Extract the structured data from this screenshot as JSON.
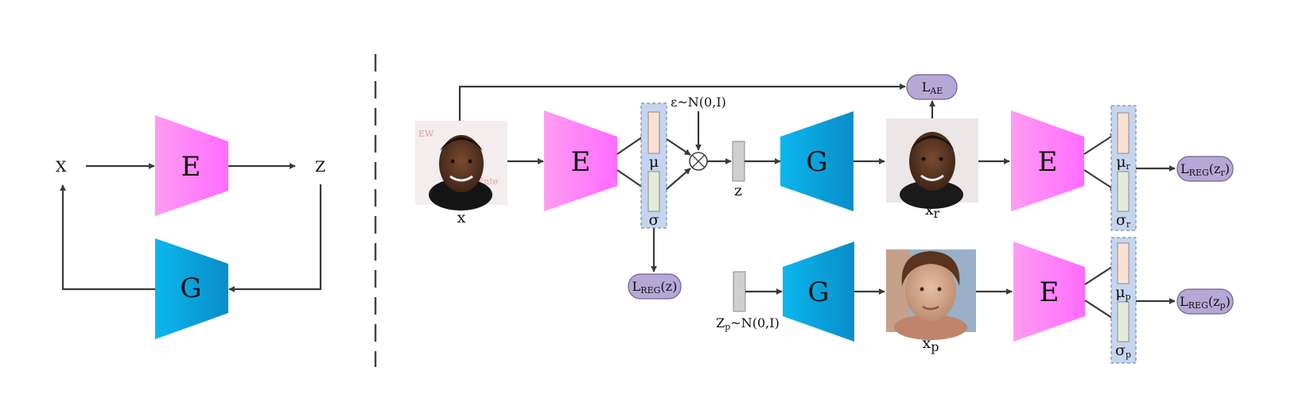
{
  "colors": {
    "encoder": "#ff80ff",
    "generator": "#0aa3dd",
    "loss_pill": "#b6a8d6",
    "mu_bar": "#fbe1d2",
    "sigma_bar": "#e4ecd9",
    "latent_group": "#c6d5ee"
  },
  "left": {
    "x_label": "X",
    "z_label": "Z",
    "encoder_label": "E",
    "generator_label": "G"
  },
  "right": {
    "input_label": "x",
    "encoder_label": "E",
    "mu_label": "μ",
    "sigma_label": "σ",
    "noise_label": "ε~N(0,I)",
    "z_label": "z",
    "generator_label": "G",
    "recon_label": "x",
    "recon_sub": "r",
    "loss_ae": {
      "main": "L",
      "sub": "AE",
      "tail": ""
    },
    "loss_reg_z": {
      "main": "L",
      "sub": "REG",
      "tail": "(z)"
    },
    "encoder2_label": "E",
    "mu_r": {
      "main": "μ",
      "sub": "r"
    },
    "sigma_r": {
      "main": "σ",
      "sub": "r"
    },
    "loss_reg_zr": {
      "main": "L",
      "sub": "REG",
      "tail1": "(z",
      "tail_sub": "r",
      "tail2": ")"
    },
    "prior": {
      "main": "Z",
      "sub": "p",
      "tail": "~N(0,I)"
    },
    "generator2_label": "G",
    "sample_label": "x",
    "sample_sub": "p",
    "encoder3_label": "E",
    "mu_p": {
      "main": "μ",
      "sub": "p"
    },
    "sigma_p": {
      "main": "σ",
      "sub": "p"
    },
    "loss_reg_zp": {
      "main": "L",
      "sub": "REG",
      "tail1": "(z",
      "tail_sub": "p",
      "tail2": ")"
    }
  },
  "icons": {
    "input_face": "face-photo-icon",
    "recon_face": "face-photo-icon",
    "sample_face": "face-photo-icon",
    "multiply": "multiply-circle-icon"
  }
}
